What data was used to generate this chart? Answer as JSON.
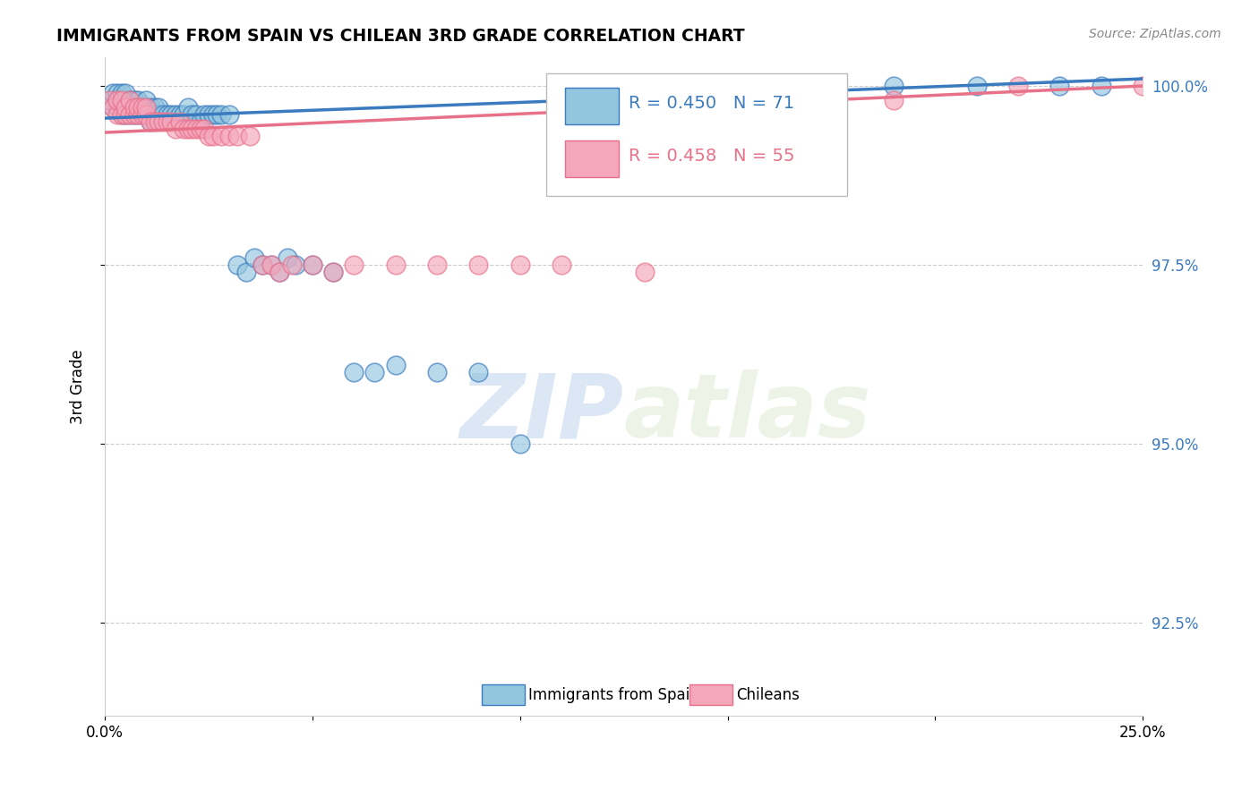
{
  "title": "IMMIGRANTS FROM SPAIN VS CHILEAN 3RD GRADE CORRELATION CHART",
  "source": "Source: ZipAtlas.com",
  "ylabel": "3rd Grade",
  "ytick_labels": [
    "100.0%",
    "97.5%",
    "95.0%",
    "92.5%"
  ],
  "ytick_values": [
    1.0,
    0.975,
    0.95,
    0.925
  ],
  "xlim": [
    0.0,
    0.25
  ],
  "ylim": [
    0.912,
    1.004
  ],
  "legend_blue_label": "Immigrants from Spain",
  "legend_pink_label": "Chileans",
  "R_blue": 0.45,
  "N_blue": 71,
  "R_pink": 0.458,
  "N_pink": 55,
  "blue_color": "#92c5de",
  "pink_color": "#f4a6bb",
  "blue_line_color": "#3a7abf",
  "pink_line_color": "#e8718a",
  "watermark_zip": "ZIP",
  "watermark_atlas": "atlas",
  "blue_x": [
    0.001,
    0.002,
    0.002,
    0.003,
    0.003,
    0.003,
    0.004,
    0.004,
    0.004,
    0.005,
    0.005,
    0.005,
    0.006,
    0.006,
    0.006,
    0.007,
    0.007,
    0.007,
    0.008,
    0.008,
    0.008,
    0.009,
    0.009,
    0.01,
    0.01,
    0.01,
    0.011,
    0.011,
    0.012,
    0.012,
    0.013,
    0.013,
    0.014,
    0.015,
    0.016,
    0.017,
    0.018,
    0.019,
    0.02,
    0.021,
    0.022,
    0.023,
    0.024,
    0.025,
    0.026,
    0.027,
    0.028,
    0.03,
    0.032,
    0.034,
    0.036,
    0.038,
    0.04,
    0.042,
    0.044,
    0.046,
    0.05,
    0.055,
    0.06,
    0.065,
    0.07,
    0.08,
    0.09,
    0.1,
    0.12,
    0.14,
    0.16,
    0.19,
    0.21,
    0.23,
    0.24
  ],
  "blue_y": [
    0.998,
    0.997,
    0.999,
    0.997,
    0.998,
    0.999,
    0.996,
    0.997,
    0.999,
    0.996,
    0.997,
    0.999,
    0.996,
    0.997,
    0.998,
    0.996,
    0.997,
    0.998,
    0.996,
    0.997,
    0.998,
    0.996,
    0.997,
    0.996,
    0.997,
    0.998,
    0.995,
    0.997,
    0.996,
    0.997,
    0.996,
    0.997,
    0.996,
    0.996,
    0.996,
    0.996,
    0.996,
    0.996,
    0.997,
    0.996,
    0.996,
    0.995,
    0.996,
    0.996,
    0.996,
    0.996,
    0.996,
    0.996,
    0.975,
    0.974,
    0.976,
    0.975,
    0.975,
    0.974,
    0.976,
    0.975,
    0.975,
    0.974,
    0.96,
    0.96,
    0.961,
    0.96,
    0.96,
    0.95,
    0.998,
    0.999,
    1.0,
    1.0,
    1.0,
    1.0,
    1.0
  ],
  "pink_x": [
    0.001,
    0.002,
    0.003,
    0.003,
    0.004,
    0.004,
    0.005,
    0.005,
    0.006,
    0.006,
    0.007,
    0.007,
    0.008,
    0.008,
    0.009,
    0.009,
    0.01,
    0.01,
    0.011,
    0.012,
    0.013,
    0.014,
    0.015,
    0.016,
    0.017,
    0.018,
    0.019,
    0.02,
    0.021,
    0.022,
    0.023,
    0.024,
    0.025,
    0.026,
    0.028,
    0.03,
    0.032,
    0.035,
    0.038,
    0.04,
    0.042,
    0.045,
    0.05,
    0.055,
    0.06,
    0.07,
    0.08,
    0.09,
    0.1,
    0.11,
    0.13,
    0.16,
    0.19,
    0.22,
    0.25
  ],
  "pink_y": [
    0.998,
    0.997,
    0.996,
    0.998,
    0.996,
    0.998,
    0.996,
    0.997,
    0.996,
    0.998,
    0.996,
    0.997,
    0.996,
    0.997,
    0.996,
    0.997,
    0.996,
    0.997,
    0.995,
    0.995,
    0.995,
    0.995,
    0.995,
    0.995,
    0.994,
    0.995,
    0.994,
    0.994,
    0.994,
    0.994,
    0.994,
    0.994,
    0.993,
    0.993,
    0.993,
    0.993,
    0.993,
    0.993,
    0.975,
    0.975,
    0.974,
    0.975,
    0.975,
    0.974,
    0.975,
    0.975,
    0.975,
    0.975,
    0.975,
    0.975,
    0.974,
    0.997,
    0.998,
    1.0,
    1.0
  ]
}
